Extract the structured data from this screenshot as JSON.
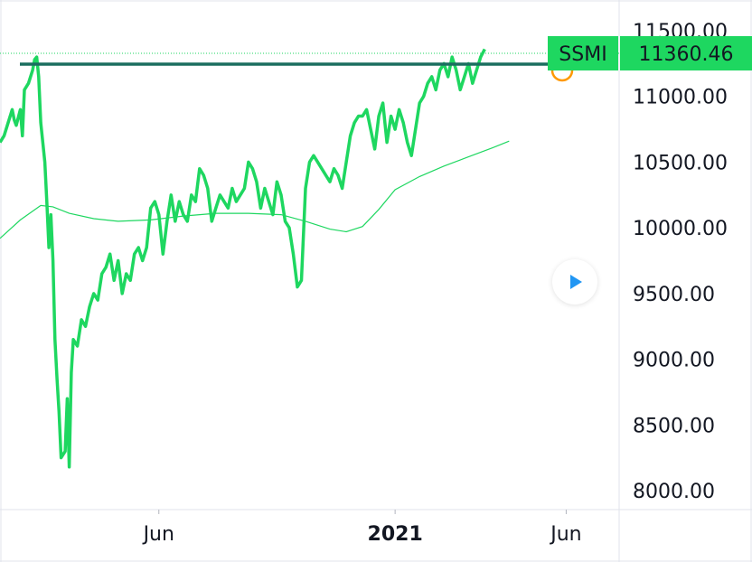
{
  "chart_data": {
    "type": "line",
    "title": "",
    "xlabel": "",
    "ylabel": "",
    "symbol": "SSMI",
    "last_value_label": "11360.46",
    "accent_color": "#1ed760",
    "ma_color": "#1ed760",
    "level_line_color": "#1a6e5f",
    "highlight_color": "#ff9800",
    "ylim": [
      7900,
      11600
    ],
    "y_ticks": [
      "8000.00",
      "8500.00",
      "9000.00",
      "9500.00",
      "10000.00",
      "10500.00",
      "11000.00",
      "11500.00"
    ],
    "y_tick_values": [
      8000,
      8500,
      9000,
      9500,
      10000,
      10500,
      11000,
      11500
    ],
    "x_ticks": [
      {
        "label": "Jun",
        "x": 2020.42,
        "bold": false
      },
      {
        "label": "2021",
        "x": 2021.0,
        "bold": true
      },
      {
        "label": "Jun",
        "x": 2021.42,
        "bold": false
      }
    ],
    "xlim": [
      2020.03,
      2021.55
    ],
    "reference_level": 11300,
    "grid": false,
    "legend": "none",
    "series": [
      {
        "values": [
          [
            2020.03,
            10650
          ],
          [
            2020.04,
            10700
          ],
          [
            2020.05,
            10800
          ],
          [
            2020.06,
            10900
          ],
          [
            2020.065,
            10820
          ],
          [
            2020.07,
            10780
          ],
          [
            2020.08,
            10900
          ],
          [
            2020.085,
            10700
          ],
          [
            2020.09,
            11050
          ],
          [
            2020.1,
            11100
          ],
          [
            2020.11,
            11200
          ],
          [
            2020.115,
            11280
          ],
          [
            2020.12,
            11300
          ],
          [
            2020.125,
            11150
          ],
          [
            2020.13,
            10800
          ],
          [
            2020.14,
            10500
          ],
          [
            2020.145,
            10200
          ],
          [
            2020.15,
            9850
          ],
          [
            2020.155,
            10100
          ],
          [
            2020.16,
            9750
          ],
          [
            2020.165,
            9150
          ],
          [
            2020.17,
            8850
          ],
          [
            2020.175,
            8600
          ],
          [
            2020.18,
            8250
          ],
          [
            2020.19,
            8300
          ],
          [
            2020.195,
            8700
          ],
          [
            2020.2,
            8180
          ],
          [
            2020.205,
            8900
          ],
          [
            2020.21,
            9150
          ],
          [
            2020.22,
            9100
          ],
          [
            2020.23,
            9300
          ],
          [
            2020.24,
            9250
          ],
          [
            2020.25,
            9400
          ],
          [
            2020.26,
            9500
          ],
          [
            2020.27,
            9450
          ],
          [
            2020.28,
            9650
          ],
          [
            2020.29,
            9700
          ],
          [
            2020.3,
            9800
          ],
          [
            2020.31,
            9600
          ],
          [
            2020.32,
            9750
          ],
          [
            2020.33,
            9500
          ],
          [
            2020.34,
            9650
          ],
          [
            2020.35,
            9600
          ],
          [
            2020.36,
            9800
          ],
          [
            2020.37,
            9850
          ],
          [
            2020.38,
            9750
          ],
          [
            2020.39,
            9850
          ],
          [
            2020.4,
            10150
          ],
          [
            2020.41,
            10200
          ],
          [
            2020.42,
            10100
          ],
          [
            2020.43,
            9800
          ],
          [
            2020.44,
            10050
          ],
          [
            2020.45,
            10250
          ],
          [
            2020.46,
            10050
          ],
          [
            2020.47,
            10200
          ],
          [
            2020.48,
            10100
          ],
          [
            2020.49,
            10050
          ],
          [
            2020.5,
            10250
          ],
          [
            2020.51,
            10200
          ],
          [
            2020.52,
            10450
          ],
          [
            2020.53,
            10400
          ],
          [
            2020.54,
            10300
          ],
          [
            2020.55,
            10050
          ],
          [
            2020.56,
            10150
          ],
          [
            2020.57,
            10250
          ],
          [
            2020.58,
            10200
          ],
          [
            2020.59,
            10150
          ],
          [
            2020.6,
            10300
          ],
          [
            2020.61,
            10200
          ],
          [
            2020.62,
            10250
          ],
          [
            2020.63,
            10300
          ],
          [
            2020.64,
            10500
          ],
          [
            2020.65,
            10450
          ],
          [
            2020.66,
            10350
          ],
          [
            2020.67,
            10150
          ],
          [
            2020.68,
            10300
          ],
          [
            2020.69,
            10200
          ],
          [
            2020.7,
            10100
          ],
          [
            2020.71,
            10350
          ],
          [
            2020.72,
            10250
          ],
          [
            2020.73,
            10050
          ],
          [
            2020.74,
            10000
          ],
          [
            2020.75,
            9800
          ],
          [
            2020.76,
            9550
          ],
          [
            2020.77,
            9600
          ],
          [
            2020.78,
            10300
          ],
          [
            2020.79,
            10500
          ],
          [
            2020.8,
            10550
          ],
          [
            2020.81,
            10500
          ],
          [
            2020.82,
            10450
          ],
          [
            2020.83,
            10400
          ],
          [
            2020.84,
            10350
          ],
          [
            2020.85,
            10450
          ],
          [
            2020.86,
            10400
          ],
          [
            2020.87,
            10300
          ],
          [
            2020.88,
            10500
          ],
          [
            2020.89,
            10700
          ],
          [
            2020.9,
            10800
          ],
          [
            2020.91,
            10850
          ],
          [
            2020.92,
            10850
          ],
          [
            2020.93,
            10900
          ],
          [
            2020.94,
            10750
          ],
          [
            2020.95,
            10600
          ],
          [
            2020.96,
            10850
          ],
          [
            2020.97,
            10950
          ],
          [
            2020.98,
            10650
          ],
          [
            2020.99,
            10850
          ],
          [
            2021.0,
            10750
          ],
          [
            2021.01,
            10900
          ],
          [
            2021.02,
            10800
          ],
          [
            2021.03,
            10650
          ],
          [
            2021.04,
            10550
          ],
          [
            2021.05,
            10750
          ],
          [
            2021.06,
            10950
          ],
          [
            2021.07,
            11000
          ],
          [
            2021.08,
            11100
          ],
          [
            2021.09,
            11150
          ],
          [
            2021.1,
            11050
          ],
          [
            2021.11,
            11200
          ],
          [
            2021.12,
            11250
          ],
          [
            2021.13,
            11150
          ],
          [
            2021.14,
            11300
          ],
          [
            2021.15,
            11200
          ],
          [
            2021.16,
            11050
          ],
          [
            2021.17,
            11150
          ],
          [
            2021.18,
            11250
          ],
          [
            2021.19,
            11100
          ],
          [
            2021.2,
            11200
          ],
          [
            2021.21,
            11300
          ],
          [
            2021.22,
            11360
          ]
        ]
      },
      {
        "values": [
          [
            2020.03,
            9920
          ],
          [
            2020.08,
            10060
          ],
          [
            2020.13,
            10170
          ],
          [
            2020.16,
            10160
          ],
          [
            2020.2,
            10110
          ],
          [
            2020.26,
            10070
          ],
          [
            2020.32,
            10050
          ],
          [
            2020.4,
            10060
          ],
          [
            2020.48,
            10090
          ],
          [
            2020.56,
            10110
          ],
          [
            2020.64,
            10110
          ],
          [
            2020.72,
            10100
          ],
          [
            2020.78,
            10050
          ],
          [
            2020.84,
            9990
          ],
          [
            2020.88,
            9970
          ],
          [
            2020.92,
            10010
          ],
          [
            2020.96,
            10140
          ],
          [
            2021.0,
            10290
          ],
          [
            2021.06,
            10390
          ],
          [
            2021.12,
            10470
          ],
          [
            2021.18,
            10540
          ],
          [
            2021.24,
            10610
          ],
          [
            2021.28,
            10660
          ]
        ]
      }
    ]
  }
}
